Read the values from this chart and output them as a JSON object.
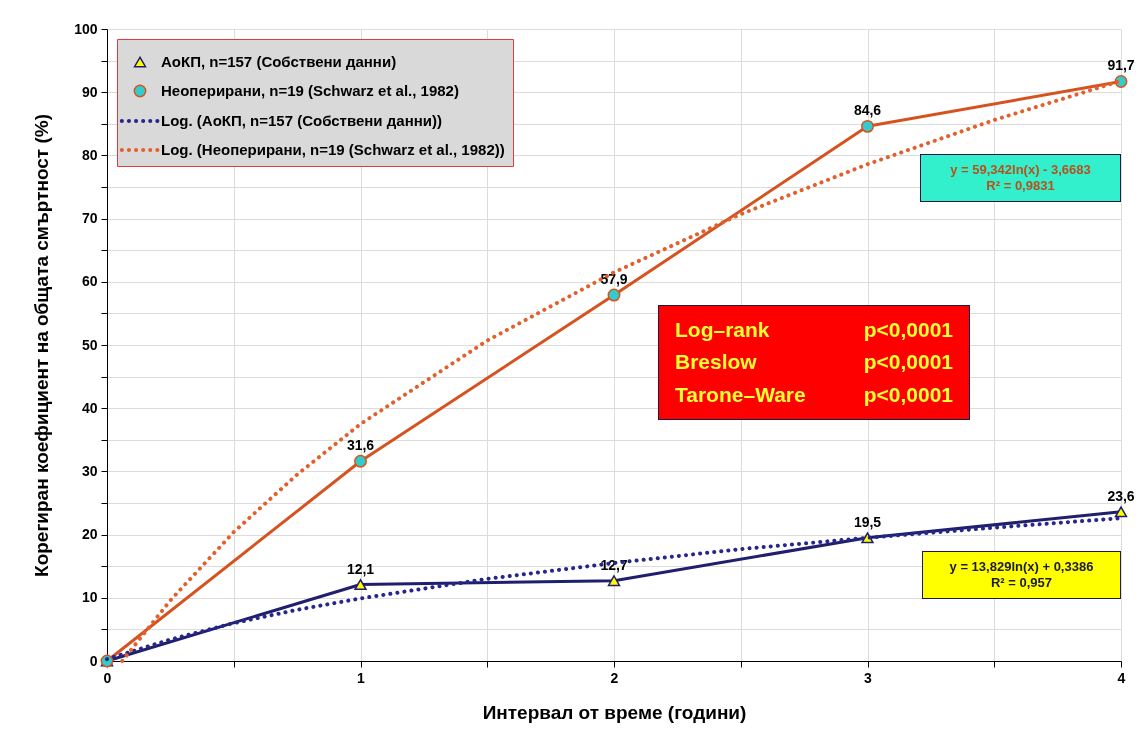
{
  "chart_data": {
    "type": "line",
    "xlabel": "Интервал от време (години)",
    "ylabel": "Корегиран коефициент на общата смъртност (%)",
    "x": [
      0,
      1,
      2,
      3,
      4
    ],
    "xlim": [
      0,
      4
    ],
    "xticks": [
      0,
      {
        "value": 0.5,
        "label": null
      },
      1,
      {
        "value": 1.5,
        "label": null
      },
      2,
      {
        "value": 2.5,
        "label": null
      },
      3,
      {
        "value": 3.5,
        "label": null
      },
      4
    ],
    "ylim": [
      0,
      100
    ],
    "yticks": [
      0,
      {
        "value": 5,
        "label": null
      },
      10,
      {
        "value": 15,
        "label": null
      },
      20,
      {
        "value": 25,
        "label": null
      },
      30,
      {
        "value": 35,
        "label": null
      },
      40,
      {
        "value": 45,
        "label": null
      },
      50,
      {
        "value": 55,
        "label": null
      },
      60,
      {
        "value": 65,
        "label": null
      },
      70,
      {
        "value": 75,
        "label": null
      },
      80,
      {
        "value": 85,
        "label": null
      },
      90,
      {
        "value": 95,
        "label": null
      },
      100
    ],
    "grid": true,
    "legend": "top left",
    "series": [
      {
        "name": "АоКП, n=157 (Собствени данни)",
        "color": "#1f1f6e",
        "marker": "triangle",
        "line_style": "solid",
        "values": [
          0,
          12.1,
          12.7,
          19.5,
          23.6
        ],
        "value_labels": [
          null,
          "12,1",
          "12,7",
          "19,5",
          "23,6"
        ]
      },
      {
        "name": "Неоперирани, n=19 (Schwarz et al., 1982)",
        "color": "#d6521e",
        "marker": "circle",
        "line_style": "solid",
        "values": [
          0,
          31.6,
          57.9,
          84.6,
          91.7
        ],
        "value_labels": [
          null,
          "31,6",
          "57,9",
          "84,6",
          "91,7"
        ]
      },
      {
        "name": "Log. (АоКП, n=157 (Собствени данни))",
        "color": "#26268c",
        "marker": "none",
        "line_style": "dotted",
        "x": [
          0,
          0.25,
          0.5,
          0.75,
          1,
          1.5,
          2,
          2.5,
          3,
          3.5,
          4
        ],
        "values": [
          0.3,
          3.4,
          6.0,
          8.1,
          9.9,
          13.0,
          15.5,
          17.7,
          19.5,
          21.1,
          22.6
        ]
      },
      {
        "name": "Log. (Неоперирани, n=19 (Schwarz et al., 1982))",
        "color": "#e2602c",
        "marker": "none",
        "line_style": "dotted",
        "x": [
          0.06,
          0.25,
          0.5,
          0.75,
          1,
          1.5,
          2,
          2.5,
          3,
          3.5,
          4
        ],
        "values": [
          0,
          9.6,
          20.4,
          29.5,
          37.5,
          50.7,
          61.5,
          70.7,
          78.6,
          85.6,
          91.8
        ]
      }
    ],
    "annotations": [
      "y = 59,342ln(x) - 3,6683\nR² = 0,9831",
      "y = 13,829ln(x) + 0,3386\nR² = 0,957",
      "Log–rank",
      "p<0,0001",
      "Breslow",
      "p<0,0001",
      "Tarone–Ware",
      "p<0,0001"
    ]
  }
}
